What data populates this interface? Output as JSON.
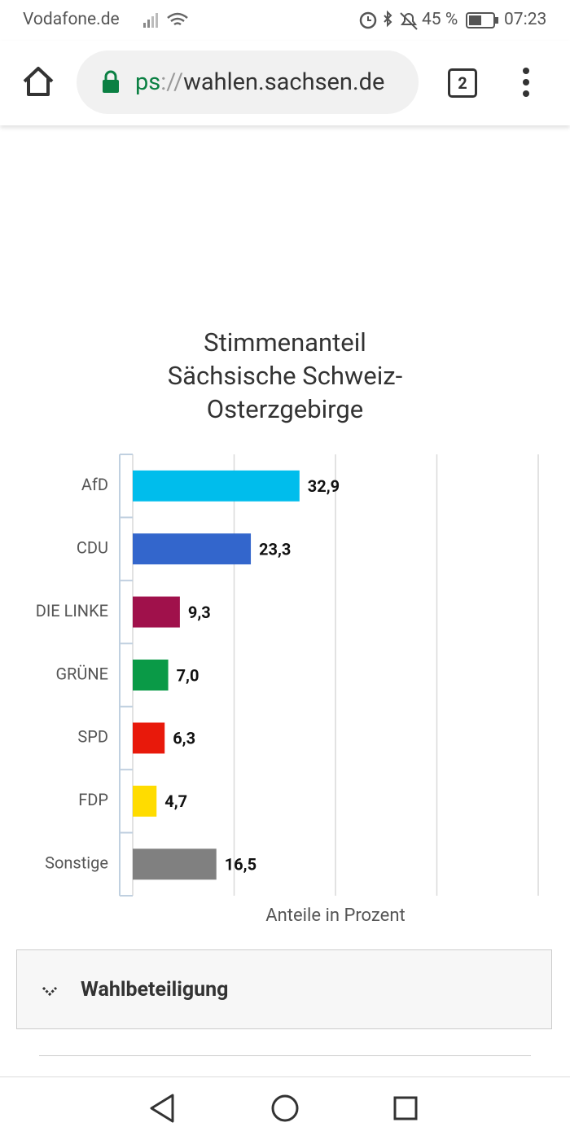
{
  "status_bar": {
    "carrier": "Vodafone.de",
    "battery": "45 %",
    "time": "07:23"
  },
  "browser": {
    "url_scheme": "ps",
    "url_separator": "://",
    "url_host": "wahlen.sachsen.de",
    "tab_count": "2"
  },
  "chart_data": {
    "type": "hbar",
    "title": "Stimmenanteil Sächsische Schweiz-Osterzgebirge",
    "categories": [
      "AfD",
      "CDU",
      "DIE LINKE",
      "GRÜNE",
      "SPD",
      "FDP",
      "Sonstige"
    ],
    "values": [
      32.9,
      23.3,
      9.3,
      7.0,
      6.3,
      4.7,
      16.5
    ],
    "value_labels": [
      "32,9",
      "23,3",
      "9,3",
      "7,0",
      "6,3",
      "4,7",
      "16,5"
    ],
    "colors": [
      "#00bdec",
      "#3366cc",
      "#a0114b",
      "#0a9a47",
      "#e8190b",
      "#ffdc00",
      "#808080"
    ],
    "xlim": [
      0,
      80
    ],
    "xticks": [
      0,
      20,
      40,
      60,
      80
    ],
    "grid": true,
    "xlabel": "Anteile in Prozent"
  },
  "section": {
    "title": "Wahlbeteiligung"
  }
}
